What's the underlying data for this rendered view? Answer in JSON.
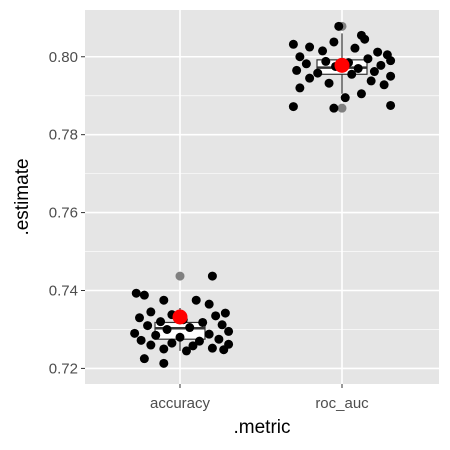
{
  "chart_data": {
    "type": "scatter",
    "subtype": "boxplot-with-jitter",
    "title": "",
    "xlabel": ".metric",
    "ylabel": ".estimate",
    "categories": [
      "accuracy",
      "roc_auc"
    ],
    "ylim": [
      0.716,
      0.812
    ],
    "y_ticks": [
      0.72,
      0.74,
      0.76,
      0.78,
      0.8
    ],
    "y_tick_labels": [
      "0.72",
      "0.74",
      "0.76",
      "0.78",
      "0.80"
    ],
    "grid": true,
    "background": "#e5e5e5",
    "grid_color": "#ffffff",
    "point_color": "#000000",
    "mean_color": "#ff0000",
    "box_fill": "#ffffff",
    "box_line_color": "#333333",
    "outlier_color": "#808080",
    "boxes": [
      {
        "category": "accuracy",
        "lower_whisker": 0.7245,
        "q1": 0.7275,
        "median": 0.7303,
        "q3": 0.7318,
        "upper_whisker": 0.7355,
        "outliers": [
          0.7437
        ]
      },
      {
        "category": "roc_auc",
        "lower_whisker": 0.7905,
        "q1": 0.7955,
        "median": 0.7972,
        "q3": 0.7992,
        "upper_whisker": 0.806,
        "outliers": [
          0.7868,
          0.8078
        ]
      }
    ],
    "means": [
      {
        "category": "accuracy",
        "value": 0.7332
      },
      {
        "category": "roc_auc",
        "value": 0.7978
      }
    ],
    "points": [
      {
        "category": "accuracy",
        "jitter": -0.27,
        "value": 0.7393
      },
      {
        "category": "accuracy",
        "jitter": -0.22,
        "value": 0.7388
      },
      {
        "category": "accuracy",
        "jitter": -0.1,
        "value": 0.7375
      },
      {
        "category": "accuracy",
        "jitter": 0.1,
        "value": 0.7375
      },
      {
        "category": "accuracy",
        "jitter": 0.18,
        "value": 0.7365
      },
      {
        "category": "accuracy",
        "jitter": 0.2,
        "value": 0.7437
      },
      {
        "category": "accuracy",
        "jitter": -0.18,
        "value": 0.7345
      },
      {
        "category": "accuracy",
        "jitter": 0.28,
        "value": 0.7342
      },
      {
        "category": "accuracy",
        "jitter": -0.05,
        "value": 0.7338
      },
      {
        "category": "accuracy",
        "jitter": 0.22,
        "value": 0.7335
      },
      {
        "category": "accuracy",
        "jitter": -0.25,
        "value": 0.733
      },
      {
        "category": "accuracy",
        "jitter": 0.02,
        "value": 0.7325
      },
      {
        "category": "accuracy",
        "jitter": -0.12,
        "value": 0.732
      },
      {
        "category": "accuracy",
        "jitter": 0.14,
        "value": 0.7318
      },
      {
        "category": "accuracy",
        "jitter": 0.26,
        "value": 0.7312
      },
      {
        "category": "accuracy",
        "jitter": -0.2,
        "value": 0.731
      },
      {
        "category": "accuracy",
        "jitter": 0.06,
        "value": 0.7305
      },
      {
        "category": "accuracy",
        "jitter": -0.08,
        "value": 0.73
      },
      {
        "category": "accuracy",
        "jitter": 0.3,
        "value": 0.7295
      },
      {
        "category": "accuracy",
        "jitter": -0.28,
        "value": 0.729
      },
      {
        "category": "accuracy",
        "jitter": 0.18,
        "value": 0.7288
      },
      {
        "category": "accuracy",
        "jitter": -0.15,
        "value": 0.7285
      },
      {
        "category": "accuracy",
        "jitter": 0.0,
        "value": 0.728
      },
      {
        "category": "accuracy",
        "jitter": 0.24,
        "value": 0.7275
      },
      {
        "category": "accuracy",
        "jitter": -0.24,
        "value": 0.7272
      },
      {
        "category": "accuracy",
        "jitter": 0.12,
        "value": 0.727
      },
      {
        "category": "accuracy",
        "jitter": -0.05,
        "value": 0.7265
      },
      {
        "category": "accuracy",
        "jitter": 0.3,
        "value": 0.7262
      },
      {
        "category": "accuracy",
        "jitter": -0.18,
        "value": 0.726
      },
      {
        "category": "accuracy",
        "jitter": 0.08,
        "value": 0.7258
      },
      {
        "category": "accuracy",
        "jitter": 0.2,
        "value": 0.7252
      },
      {
        "category": "accuracy",
        "jitter": -0.1,
        "value": 0.725
      },
      {
        "category": "accuracy",
        "jitter": 0.27,
        "value": 0.7248
      },
      {
        "category": "accuracy",
        "jitter": 0.04,
        "value": 0.7245
      },
      {
        "category": "accuracy",
        "jitter": -0.22,
        "value": 0.7225
      },
      {
        "category": "accuracy",
        "jitter": -0.1,
        "value": 0.7213
      },
      {
        "category": "roc_auc",
        "jitter": -0.02,
        "value": 0.8078
      },
      {
        "category": "roc_auc",
        "jitter": 0.12,
        "value": 0.8055
      },
      {
        "category": "roc_auc",
        "jitter": 0.14,
        "value": 0.8045
      },
      {
        "category": "roc_auc",
        "jitter": -0.05,
        "value": 0.8038
      },
      {
        "category": "roc_auc",
        "jitter": -0.3,
        "value": 0.8032
      },
      {
        "category": "roc_auc",
        "jitter": -0.2,
        "value": 0.8025
      },
      {
        "category": "roc_auc",
        "jitter": 0.08,
        "value": 0.8022
      },
      {
        "category": "roc_auc",
        "jitter": -0.12,
        "value": 0.8015
      },
      {
        "category": "roc_auc",
        "jitter": 0.22,
        "value": 0.8012
      },
      {
        "category": "roc_auc",
        "jitter": 0.28,
        "value": 0.8005
      },
      {
        "category": "roc_auc",
        "jitter": -0.26,
        "value": 0.8
      },
      {
        "category": "roc_auc",
        "jitter": 0.16,
        "value": 0.7995
      },
      {
        "category": "roc_auc",
        "jitter": 0.3,
        "value": 0.799
      },
      {
        "category": "roc_auc",
        "jitter": -0.1,
        "value": 0.7988
      },
      {
        "category": "roc_auc",
        "jitter": 0.04,
        "value": 0.7985
      },
      {
        "category": "roc_auc",
        "jitter": -0.22,
        "value": 0.7982
      },
      {
        "category": "roc_auc",
        "jitter": 0.24,
        "value": 0.7978
      },
      {
        "category": "roc_auc",
        "jitter": -0.04,
        "value": 0.7975
      },
      {
        "category": "roc_auc",
        "jitter": 0.1,
        "value": 0.797
      },
      {
        "category": "roc_auc",
        "jitter": -0.28,
        "value": 0.7965
      },
      {
        "category": "roc_auc",
        "jitter": 0.2,
        "value": 0.7962
      },
      {
        "category": "roc_auc",
        "jitter": -0.15,
        "value": 0.7958
      },
      {
        "category": "roc_auc",
        "jitter": 0.06,
        "value": 0.7955
      },
      {
        "category": "roc_auc",
        "jitter": 0.3,
        "value": 0.795
      },
      {
        "category": "roc_auc",
        "jitter": -0.2,
        "value": 0.7945
      },
      {
        "category": "roc_auc",
        "jitter": 0.18,
        "value": 0.7938
      },
      {
        "category": "roc_auc",
        "jitter": -0.08,
        "value": 0.7932
      },
      {
        "category": "roc_auc",
        "jitter": 0.26,
        "value": 0.7928
      },
      {
        "category": "roc_auc",
        "jitter": -0.26,
        "value": 0.792
      },
      {
        "category": "roc_auc",
        "jitter": 0.12,
        "value": 0.7905
      },
      {
        "category": "roc_auc",
        "jitter": 0.02,
        "value": 0.7895
      },
      {
        "category": "roc_auc",
        "jitter": -0.3,
        "value": 0.7872
      },
      {
        "category": "roc_auc",
        "jitter": -0.05,
        "value": 0.7868
      },
      {
        "category": "roc_auc",
        "jitter": 0.3,
        "value": 0.7875
      }
    ]
  }
}
